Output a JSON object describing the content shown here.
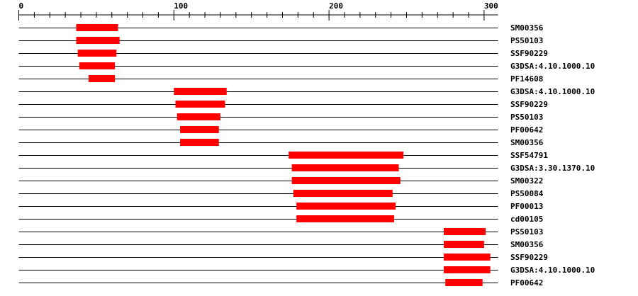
{
  "axis": {
    "min": 0,
    "max": 309,
    "major_ticks": [
      0,
      100,
      200,
      300
    ],
    "minor_step": 10,
    "tick_labels": [
      "0",
      "100",
      "200",
      "300"
    ]
  },
  "colors": {
    "domain": "#ff0000",
    "line": "#000000"
  },
  "tracks": [
    {
      "label": "SM00356",
      "start": 37,
      "end": 64
    },
    {
      "label": "PS50103",
      "start": 37,
      "end": 65
    },
    {
      "label": "SSF90229",
      "start": 38,
      "end": 63
    },
    {
      "label": "G3DSA:4.10.1000.10",
      "start": 39,
      "end": 62
    },
    {
      "label": "PF14608",
      "start": 45,
      "end": 62
    },
    {
      "label": "G3DSA:4.10.1000.10",
      "start": 100,
      "end": 134
    },
    {
      "label": "SSF90229",
      "start": 101,
      "end": 133
    },
    {
      "label": "PS50103",
      "start": 102,
      "end": 130
    },
    {
      "label": "PF00642",
      "start": 104,
      "end": 129
    },
    {
      "label": "SM00356",
      "start": 104,
      "end": 129
    },
    {
      "label": "SSF54791",
      "start": 174,
      "end": 248
    },
    {
      "label": "G3DSA:3.30.1370.10",
      "start": 176,
      "end": 245
    },
    {
      "label": "SM00322",
      "start": 176,
      "end": 246
    },
    {
      "label": "PS50084",
      "start": 177,
      "end": 241
    },
    {
      "label": "PF00013",
      "start": 179,
      "end": 243
    },
    {
      "label": "cd00105",
      "start": 179,
      "end": 242
    },
    {
      "label": "PS50103",
      "start": 274,
      "end": 301
    },
    {
      "label": "SM00356",
      "start": 274,
      "end": 300
    },
    {
      "label": "SSF90229",
      "start": 274,
      "end": 304
    },
    {
      "label": "G3DSA:4.10.1000.10",
      "start": 274,
      "end": 304
    },
    {
      "label": "PF00642",
      "start": 275,
      "end": 299
    }
  ]
}
